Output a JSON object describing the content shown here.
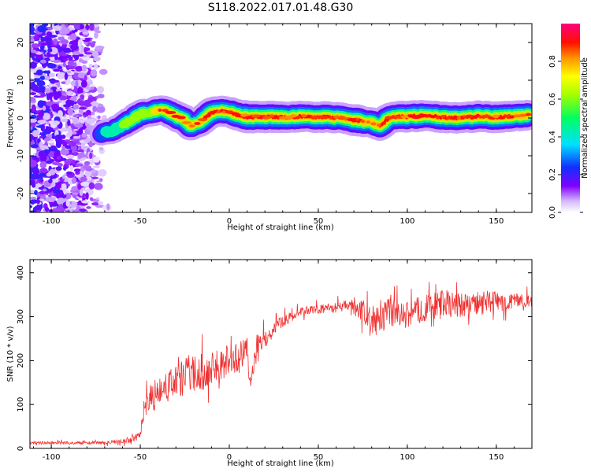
{
  "title": "S118.2022.017.01.48.G30",
  "chart_data": [
    {
      "type": "heatmap",
      "xlabel": "Height of straight line (km)",
      "ylabel": "Frequency (Hz)",
      "xlim": [
        -112,
        170
      ],
      "ylim": [
        -25,
        25
      ],
      "xticks": [
        -100,
        -50,
        0,
        50,
        100,
        150
      ],
      "xtick_labels": [
        "-100",
        "-50",
        "0",
        "50",
        "100",
        "150"
      ],
      "yticks": [
        -20,
        -10,
        0,
        10,
        20
      ],
      "ytick_labels": [
        "-20",
        "-10",
        "0",
        "10",
        "20"
      ],
      "colorbar": {
        "label": "Normalized spectral amplitude",
        "range": [
          0,
          1
        ],
        "ticks": [
          0.0,
          0.2,
          0.4,
          0.6,
          0.8
        ],
        "tick_labels": [
          "0.0",
          "0.2",
          "0.4",
          "0.6",
          "0.8"
        ],
        "colormap": "rainbow (white-purple-blue-cyan-green-yellow-orange-red-magenta)"
      },
      "noise_region": {
        "x": [
          -112,
          -68
        ],
        "y": [
          -25,
          25
        ],
        "amplitude": 0.15
      },
      "ridge": {
        "description": "frequency of peak spectral amplitude vs height",
        "x": [
          -72,
          -66,
          -60,
          -55,
          -50,
          -45,
          -40,
          -35,
          -30,
          -25,
          -22,
          -18,
          -14,
          -10,
          -5,
          0,
          5,
          10,
          20,
          30,
          40,
          50,
          60,
          70,
          80,
          85,
          90,
          100,
          110,
          120,
          130,
          140,
          150,
          160,
          168
        ],
        "y": [
          -4,
          -3.5,
          -2,
          -0.5,
          1,
          1.5,
          2,
          1.8,
          0.5,
          -0.5,
          -2,
          -1.5,
          0,
          1.5,
          2,
          1.5,
          0.8,
          0.3,
          0.3,
          0.2,
          0.4,
          0.3,
          0.1,
          -0.5,
          -1.2,
          -2,
          0.2,
          0.4,
          0.6,
          0.2,
          0.0,
          0.4,
          0.2,
          0.5,
          0.8
        ],
        "peak_amplitude": [
          0.35,
          0.5,
          0.6,
          0.7,
          0.75,
          0.7,
          0.8,
          0.8,
          0.9,
          0.85,
          0.85,
          0.8,
          0.9,
          0.95,
          0.9,
          0.9,
          0.95,
          1.0,
          1.0,
          0.95,
          0.9,
          0.95,
          0.9,
          0.95,
          0.85,
          0.9,
          0.9,
          0.95,
          0.95,
          0.9,
          0.9,
          0.95,
          0.95,
          0.9,
          0.85
        ]
      }
    },
    {
      "type": "line",
      "xlabel": "Height of straight line (km)",
      "ylabel": "SNR (10 * v/v)",
      "xlim": [
        -112,
        170
      ],
      "ylim": [
        0,
        430
      ],
      "xticks": [
        -100,
        -50,
        0,
        50,
        100,
        150
      ],
      "xtick_labels": [
        "-100",
        "-50",
        "0",
        "50",
        "100",
        "150"
      ],
      "yticks": [
        0,
        100,
        200,
        300,
        400
      ],
      "ytick_labels": [
        "0",
        "100",
        "200",
        "300",
        "400"
      ],
      "color": "#f03030",
      "series": [
        {
          "x": [
            -112,
            -100,
            -90,
            -80,
            -70,
            -60,
            -55,
            -50,
            -48,
            -45,
            -40,
            -35,
            -30,
            -25,
            -20,
            -15,
            -10,
            -5,
            0,
            5,
            10,
            12,
            15,
            20,
            25,
            30,
            35,
            40,
            45,
            50,
            55,
            60,
            65,
            70,
            75,
            80,
            85,
            90,
            95,
            100,
            110,
            120,
            130,
            140,
            150,
            160,
            170
          ],
          "y": [
            12,
            13,
            12,
            12,
            13,
            16,
            20,
            30,
            80,
            110,
            120,
            140,
            150,
            160,
            170,
            175,
            180,
            190,
            200,
            210,
            220,
            140,
            230,
            250,
            270,
            290,
            300,
            310,
            315,
            315,
            320,
            320,
            325,
            320,
            315,
            290,
            295,
            310,
            300,
            305,
            320,
            330,
            325,
            330,
            335,
            335,
            335
          ],
          "noise_amplitude": [
            5,
            5,
            5,
            5,
            5,
            8,
            10,
            15,
            40,
            50,
            50,
            55,
            55,
            60,
            60,
            60,
            55,
            55,
            50,
            50,
            45,
            20,
            40,
            30,
            25,
            20,
            15,
            15,
            15,
            15,
            15,
            18,
            20,
            25,
            35,
            40,
            40,
            45,
            45,
            45,
            45,
            45,
            40,
            40,
            35,
            25,
            20
          ]
        }
      ]
    }
  ]
}
